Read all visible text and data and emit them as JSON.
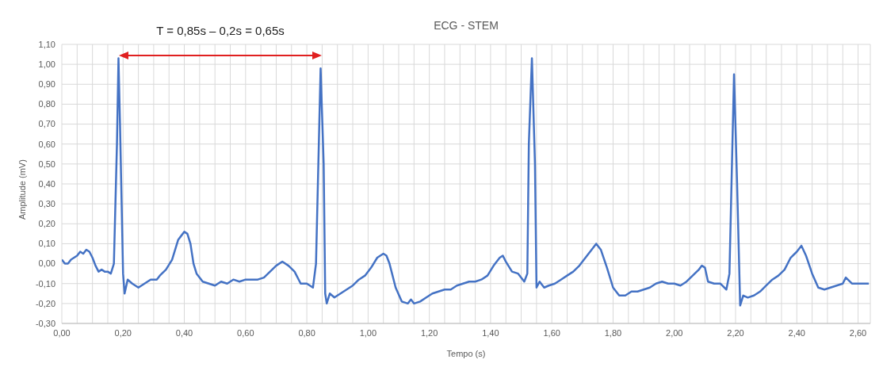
{
  "chart_data": {
    "type": "line",
    "title": "ECG - STEM",
    "xlabel": "Tempo (s)",
    "ylabel": "Amplitude (mV)",
    "annotations": [
      "T = 0,85s – 0,2s = 0,65s"
    ],
    "xlim": [
      0,
      2.64
    ],
    "xticks": [
      {
        "value": 0,
        "label": "0,00"
      },
      {
        "value": 0.05,
        "label": null
      },
      {
        "value": 0.1,
        "label": null
      },
      {
        "value": 0.15,
        "label": null
      },
      {
        "value": 0.2,
        "label": "0,20"
      },
      {
        "value": 0.25,
        "label": null
      },
      {
        "value": 0.3,
        "label": null
      },
      {
        "value": 0.35,
        "label": null
      },
      {
        "value": 0.4,
        "label": "0,40"
      },
      {
        "value": 0.45,
        "label": null
      },
      {
        "value": 0.5,
        "label": null
      },
      {
        "value": 0.55,
        "label": null
      },
      {
        "value": 0.6,
        "label": "0,60"
      },
      {
        "value": 0.65,
        "label": null
      },
      {
        "value": 0.7,
        "label": null
      },
      {
        "value": 0.75,
        "label": null
      },
      {
        "value": 0.8,
        "label": "0,80"
      },
      {
        "value": 0.85,
        "label": null
      },
      {
        "value": 0.9,
        "label": null
      },
      {
        "value": 0.95,
        "label": null
      },
      {
        "value": 1,
        "label": "1,00"
      },
      {
        "value": 1.05,
        "label": null
      },
      {
        "value": 1.1,
        "label": null
      },
      {
        "value": 1.15,
        "label": null
      },
      {
        "value": 1.2,
        "label": "1,20"
      },
      {
        "value": 1.25,
        "label": null
      },
      {
        "value": 1.3,
        "label": null
      },
      {
        "value": 1.35,
        "label": null
      },
      {
        "value": 1.4,
        "label": "1,40"
      },
      {
        "value": 1.45,
        "label": null
      },
      {
        "value": 1.5,
        "label": null
      },
      {
        "value": 1.55,
        "label": null
      },
      {
        "value": 1.6,
        "label": "1,60"
      },
      {
        "value": 1.65,
        "label": null
      },
      {
        "value": 1.7,
        "label": null
      },
      {
        "value": 1.75,
        "label": null
      },
      {
        "value": 1.8,
        "label": "1,80"
      },
      {
        "value": 1.85,
        "label": null
      },
      {
        "value": 1.9,
        "label": null
      },
      {
        "value": 1.95,
        "label": null
      },
      {
        "value": 2,
        "label": "2,00"
      },
      {
        "value": 2.05,
        "label": null
      },
      {
        "value": 2.1,
        "label": null
      },
      {
        "value": 2.15,
        "label": null
      },
      {
        "value": 2.2,
        "label": "2,20"
      },
      {
        "value": 2.25,
        "label": null
      },
      {
        "value": 2.3,
        "label": null
      },
      {
        "value": 2.35,
        "label": null
      },
      {
        "value": 2.4,
        "label": "2,40"
      },
      {
        "value": 2.45,
        "label": null
      },
      {
        "value": 2.5,
        "label": null
      },
      {
        "value": 2.55,
        "label": null
      },
      {
        "value": 2.6,
        "label": "2,60"
      }
    ],
    "ylim": [
      -0.3,
      1.1
    ],
    "yticks": [
      {
        "value": -0.3,
        "label": "-0,30"
      },
      {
        "value": -0.2,
        "label": "-0,20"
      },
      {
        "value": -0.1,
        "label": "-0,10"
      },
      {
        "value": 0,
        "label": "0,00"
      },
      {
        "value": 0.1,
        "label": "0,10"
      },
      {
        "value": 0.2,
        "label": "0,20"
      },
      {
        "value": 0.3,
        "label": "0,30"
      },
      {
        "value": 0.4,
        "label": "0,40"
      },
      {
        "value": 0.5,
        "label": "0,50"
      },
      {
        "value": 0.6,
        "label": "0,60"
      },
      {
        "value": 0.7,
        "label": "0,70"
      },
      {
        "value": 0.8,
        "label": "0,80"
      },
      {
        "value": 0.9,
        "label": "0,90"
      },
      {
        "value": 1,
        "label": "1,00"
      },
      {
        "value": 1.1,
        "label": "1,10"
      }
    ],
    "grid": true,
    "marker": "none",
    "line_style": "solid",
    "x": [
      0,
      0.01,
      0.02,
      0.03,
      0.04,
      0.05,
      0.06,
      0.07,
      0.08,
      0.09,
      0.1,
      0.11,
      0.12,
      0.13,
      0.14,
      0.15,
      0.16,
      0.17,
      0.18,
      0.185,
      0.19,
      0.2,
      0.205,
      0.215,
      0.23,
      0.25,
      0.27,
      0.29,
      0.31,
      0.32,
      0.34,
      0.36,
      0.38,
      0.39,
      0.4,
      0.41,
      0.42,
      0.43,
      0.44,
      0.46,
      0.48,
      0.5,
      0.52,
      0.54,
      0.56,
      0.58,
      0.6,
      0.62,
      0.64,
      0.66,
      0.68,
      0.7,
      0.72,
      0.74,
      0.76,
      0.78,
      0.8,
      0.82,
      0.83,
      0.845,
      0.855,
      0.86,
      0.865,
      0.875,
      0.89,
      0.91,
      0.93,
      0.95,
      0.97,
      0.99,
      1.01,
      1.03,
      1.05,
      1.06,
      1.07,
      1.09,
      1.11,
      1.13,
      1.14,
      1.15,
      1.17,
      1.19,
      1.21,
      1.23,
      1.25,
      1.27,
      1.29,
      1.31,
      1.33,
      1.35,
      1.37,
      1.39,
      1.41,
      1.43,
      1.44,
      1.45,
      1.47,
      1.49,
      1.51,
      1.52,
      1.525,
      1.535,
      1.545,
      1.55,
      1.56,
      1.575,
      1.59,
      1.61,
      1.63,
      1.65,
      1.67,
      1.69,
      1.71,
      1.73,
      1.745,
      1.76,
      1.78,
      1.8,
      1.82,
      1.84,
      1.86,
      1.88,
      1.9,
      1.92,
      1.94,
      1.96,
      1.98,
      2,
      2.02,
      2.04,
      2.06,
      2.08,
      2.09,
      2.1,
      2.11,
      2.13,
      2.15,
      2.17,
      2.18,
      2.195,
      2.205,
      2.215,
      2.225,
      2.24,
      2.26,
      2.28,
      2.3,
      2.32,
      2.34,
      2.36,
      2.38,
      2.4,
      2.415,
      2.43,
      2.45,
      2.47,
      2.49,
      2.51,
      2.53,
      2.55,
      2.56,
      2.58,
      2.6,
      2.62,
      2.635
    ],
    "series": [
      {
        "color": "#4472c4",
        "values": [
          0.02,
          0,
          0,
          0.02,
          0.03,
          0.04,
          0.06,
          0.05,
          0.07,
          0.06,
          0.03,
          -0.01,
          -0.04,
          -0.03,
          -0.04,
          -0.04,
          -0.05,
          0,
          0.6,
          1.03,
          0.7,
          -0.05,
          -0.15,
          -0.08,
          -0.1,
          -0.12,
          -0.1,
          -0.08,
          -0.08,
          -0.06,
          -0.03,
          0.02,
          0.12,
          0.14,
          0.16,
          0.15,
          0.1,
          0,
          -0.05,
          -0.09,
          -0.1,
          -0.11,
          -0.09,
          -0.1,
          -0.08,
          -0.09,
          -0.08,
          -0.08,
          -0.08,
          -0.07,
          -0.04,
          -0.01,
          0.01,
          -0.01,
          -0.04,
          -0.1,
          -0.1,
          -0.12,
          0,
          0.98,
          0.5,
          -0.15,
          -0.2,
          -0.15,
          -0.17,
          -0.15,
          -0.13,
          -0.11,
          -0.08,
          -0.06,
          -0.02,
          0.03,
          0.05,
          0.04,
          0,
          -0.12,
          -0.19,
          -0.2,
          -0.18,
          -0.2,
          -0.19,
          -0.17,
          -0.15,
          -0.14,
          -0.13,
          -0.13,
          -0.11,
          -0.1,
          -0.09,
          -0.09,
          -0.08,
          -0.06,
          -0.01,
          0.03,
          0.04,
          0.01,
          -0.04,
          -0.05,
          -0.09,
          -0.05,
          0.6,
          1.03,
          0.5,
          -0.12,
          -0.09,
          -0.12,
          -0.11,
          -0.1,
          -0.08,
          -0.06,
          -0.04,
          -0.01,
          0.03,
          0.07,
          0.1,
          0.07,
          -0.02,
          -0.12,
          -0.16,
          -0.16,
          -0.14,
          -0.14,
          -0.13,
          -0.12,
          -0.1,
          -0.09,
          -0.1,
          -0.1,
          -0.11,
          -0.09,
          -0.06,
          -0.03,
          -0.01,
          -0.02,
          -0.09,
          -0.1,
          -0.1,
          -0.13,
          -0.05,
          0.95,
          0.4,
          -0.21,
          -0.16,
          -0.17,
          -0.16,
          -0.14,
          -0.11,
          -0.08,
          -0.06,
          -0.03,
          0.03,
          0.06,
          0.09,
          0.04,
          -0.05,
          -0.12,
          -0.13,
          -0.12,
          -0.11,
          -0.1,
          -0.07,
          -0.1,
          -0.1,
          -0.1,
          -0.1
        ]
      }
    ]
  }
}
